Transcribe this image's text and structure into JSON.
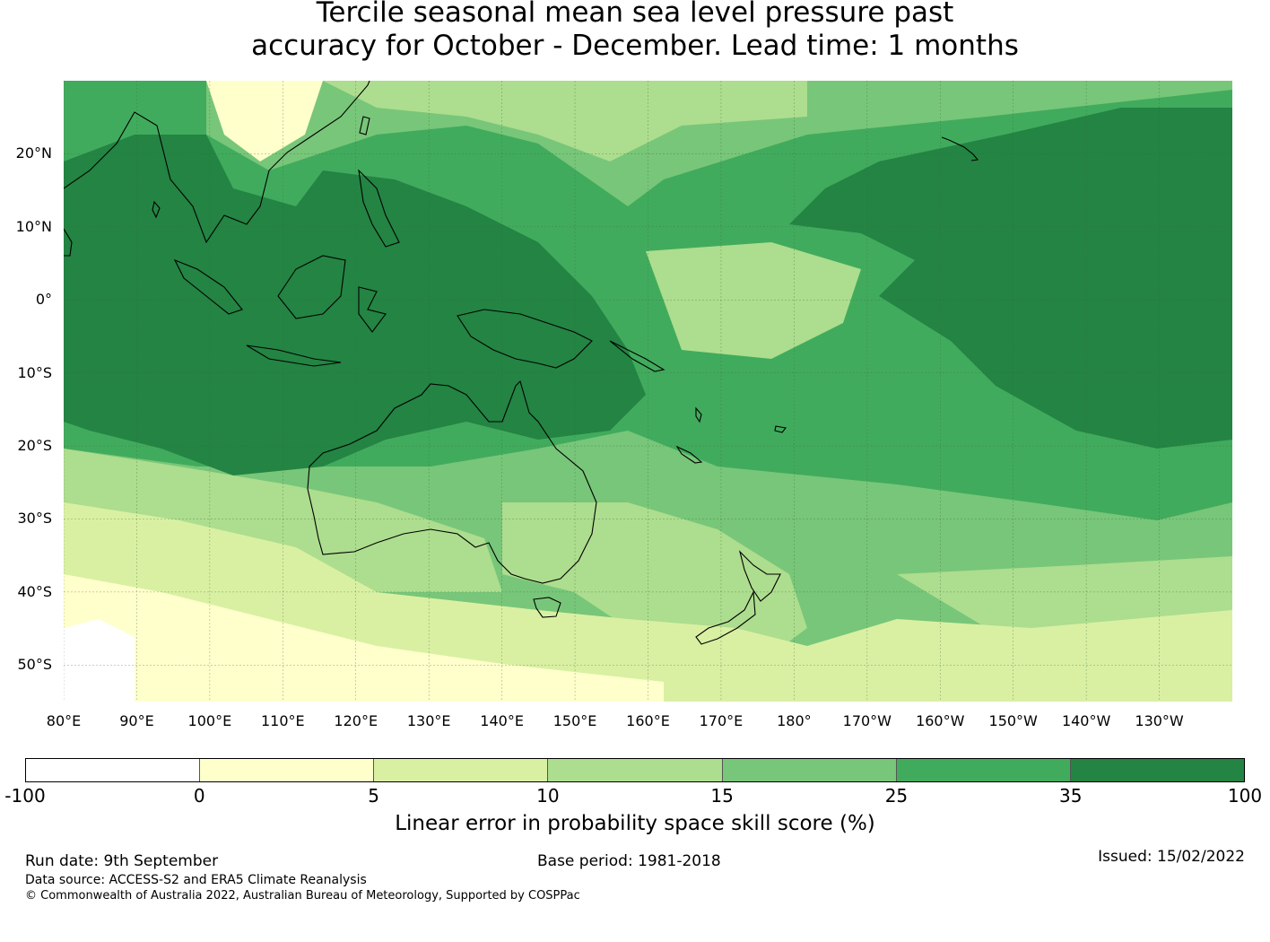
{
  "title_line1": "Tercile seasonal mean sea level pressure past",
  "title_line2": "accuracy for October - December. Lead time: 1 months",
  "map": {
    "lat_labels": [
      "20°N",
      "10°N",
      "0°",
      "10°S",
      "20°S",
      "30°S",
      "40°S",
      "50°S"
    ],
    "lat_values": [
      20,
      10,
      0,
      -10,
      -20,
      -30,
      -40,
      -50
    ],
    "lon_labels": [
      "80°E",
      "90°E",
      "100°E",
      "110°E",
      "120°E",
      "130°E",
      "140°E",
      "150°E",
      "160°E",
      "170°E",
      "180°",
      "170°W",
      "160°W",
      "150°W",
      "140°W",
      "130°W"
    ],
    "lon_values": [
      80,
      90,
      100,
      110,
      120,
      130,
      140,
      150,
      160,
      170,
      180,
      190,
      200,
      210,
      220,
      230
    ],
    "extent": {
      "lon_min": 80,
      "lon_max": 240,
      "lat_min": -55,
      "lat_max": 30
    }
  },
  "colorbar": {
    "label": "Linear error in probability space skill score (%)",
    "ticks": [
      "-100",
      "0",
      "5",
      "10",
      "15",
      "25",
      "35",
      "100"
    ],
    "colors": [
      "#ffffff",
      "#ffffcc",
      "#d9f0a3",
      "#addd8e",
      "#78c679",
      "#41ab5d",
      "#238443"
    ]
  },
  "footer": {
    "run_date": "Run date: 9th September",
    "base_period": "Base period: 1981-2018",
    "issued": "Issued: 15/02/2022",
    "data_source": "Data source: ACCESS-S2 and ERA5 Climate Reanalysis",
    "copyright": "© Commonwealth of Australia 2022, Australian Bureau of Meteorology, Supported by COSPPac"
  }
}
